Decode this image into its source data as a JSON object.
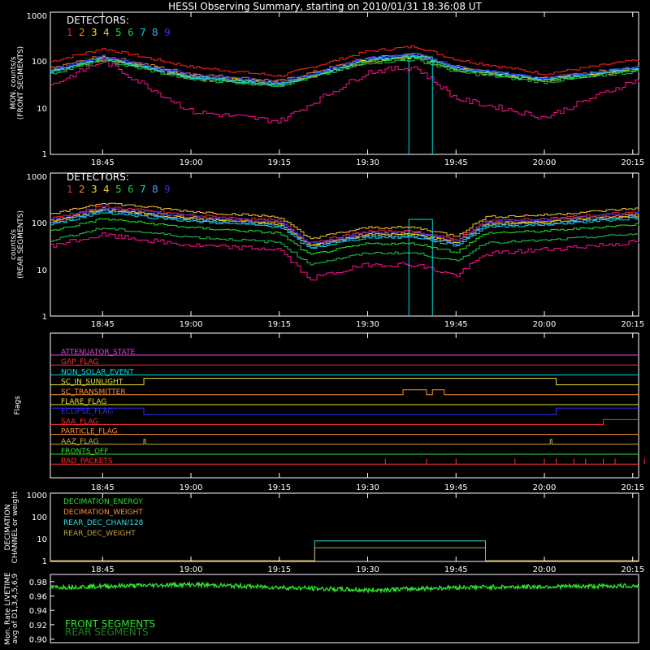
{
  "title": "HESSI Observing Summary, starting on 2010/01/31 18:36:08 UT",
  "colors": {
    "det": [
      "#ff3040",
      "#ff8030",
      "#e0e020",
      "#c8b040",
      "#30e030",
      "#40c080",
      "#00d0d0",
      "#30a0ff",
      "#4040ff"
    ],
    "magenta": "#ff1090",
    "detector_palette": [
      "#ff2020",
      "#ff7f20",
      "#ffe000",
      "#f0c040",
      "#20e020",
      "#20c050",
      "#00e0e0",
      "#40a0ff",
      "#3030ff"
    ]
  },
  "panel1": {
    "ylabel_line1": "MON. counts/s",
    "ylabel_line2": "(FRONT SEGMENTS)",
    "legend_title": "DETECTORS:",
    "legend_numbers": [
      "1",
      "2",
      "3",
      "4",
      "5",
      "6",
      "7",
      "8",
      "9"
    ],
    "yticks": [
      "1000",
      "100",
      "10",
      "1"
    ]
  },
  "panel2": {
    "ylabel_line1": "counts/s",
    "ylabel_line2": "(REAR SEGMENTS)",
    "legend_title": "DETECTORS:",
    "legend_numbers": [
      "1",
      "2",
      "3",
      "4",
      "5",
      "6",
      "7",
      "8",
      "9"
    ],
    "yticks": [
      "1000",
      "100",
      "10",
      "1"
    ]
  },
  "xticks": [
    "18:45",
    "19:00",
    "19:15",
    "19:30",
    "19:45",
    "20:00",
    "20:15"
  ],
  "flags_panel": {
    "ylabel": "Flags",
    "flags": [
      {
        "name": "ATTENUATOR_STATE",
        "color": "#e040e0"
      },
      {
        "name": "GAP_FLAG",
        "color": "#ff3030"
      },
      {
        "name": "NON_SOLAR_EVENT",
        "color": "#00e0e0"
      },
      {
        "name": "SC_IN_SUNLIGHT",
        "color": "#e0e030"
      },
      {
        "name": "SC_TRANSMITTER",
        "color": "#ff9030"
      },
      {
        "name": "FLARE_FLAG",
        "color": "#e0e020"
      },
      {
        "name": "ECLIPSE_FLAG",
        "color": "#3030ff"
      },
      {
        "name": "SAA_FLAG",
        "color": "#ff3030"
      },
      {
        "name": "PARTICLE_FLAG",
        "color": "#ff9030"
      },
      {
        "name": "AAZ_FLAG",
        "color": "#c0b040"
      },
      {
        "name": "FRONTS_OFF",
        "color": "#30e030"
      },
      {
        "name": "BAD_PACKETS",
        "color": "#ff3030"
      }
    ]
  },
  "decimation_panel": {
    "ylabel_line1": "DECIMATION",
    "ylabel_line2": "CHANNEL or weight",
    "yticks": [
      "1000",
      "100",
      "10",
      "1"
    ],
    "legend": [
      {
        "name": "DECIMATION_ENERGY",
        "color": "#30e030"
      },
      {
        "name": "DECIMATION_WEIGHT",
        "color": "#ff9030"
      },
      {
        "name": "REAR_DEC_CHAN/128",
        "color": "#30e0e0"
      },
      {
        "name": "REAR_DEC_WEIGHT",
        "color": "#c0a040"
      }
    ]
  },
  "livetime_panel": {
    "ylabel_line1": "Mon. Rate LIVETIME",
    "ylabel_line2": "avg of D1,3,4,5,6,9",
    "yticks": [
      "0.98",
      "0.96",
      "0.94",
      "0.92",
      "0.90"
    ],
    "legend": [
      {
        "name": "FRONT SEGMENTS",
        "color": "#30e030"
      },
      {
        "name": "REAR SEGMENTS",
        "color": "#208020"
      }
    ]
  },
  "chart_data": {
    "type": "line",
    "title": "HESSI Observing Summary, starting on 2010/01/31 18:36:08 UT",
    "x_axis": {
      "unit": "UT time",
      "range": [
        "18:36",
        "20:16"
      ],
      "ticks": [
        "18:45",
        "19:00",
        "19:15",
        "19:30",
        "19:45",
        "20:00",
        "20:15"
      ]
    },
    "panels": [
      {
        "name": "front segments",
        "ylabel": "MON. counts/s (FRONT SEGMENTS)",
        "yscale": "log",
        "ylim": [
          1,
          1000
        ],
        "x": [
          "18:36",
          "18:45",
          "19:00",
          "19:15",
          "19:30",
          "19:38",
          "19:45",
          "20:00",
          "20:15"
        ],
        "series": [
          {
            "name": "1",
            "values": [
              90,
              170,
              70,
              45,
              150,
              190,
              100,
              50,
              95
            ]
          },
          {
            "name": "2",
            "values": [
              65,
              120,
              50,
              35,
              110,
              130,
              70,
              40,
              70
            ]
          },
          {
            "name": "3",
            "values": [
              60,
              110,
              45,
              32,
              100,
              120,
              65,
              38,
              65
            ]
          },
          {
            "name": "4",
            "values": [
              55,
              100,
              40,
              30,
              90,
              110,
              60,
              35,
              60
            ]
          },
          {
            "name": "5",
            "values": [
              60,
              105,
              42,
              30,
              95,
              115,
              62,
              36,
              62
            ]
          },
          {
            "name": "6",
            "values": [
              50,
              95,
              38,
              28,
              85,
              100,
              55,
              33,
              55
            ]
          },
          {
            "name": "7",
            "values": [
              55,
              110,
              42,
              30,
              100,
              125,
              65,
              38,
              65
            ]
          },
          {
            "name": "8",
            "values": [
              58,
              112,
              44,
              31,
              102,
              128,
              66,
              39,
              66
            ]
          },
          {
            "name": "9",
            "values": [
              62,
              118,
              48,
              33,
              108,
              132,
              70,
              40,
              70
            ]
          },
          {
            "name": "magenta",
            "values": [
              28,
              95,
              8,
              5,
              55,
              70,
              15,
              6,
              35
            ]
          }
        ]
      },
      {
        "name": "rear segments",
        "ylabel": "counts/s (REAR SEGMENTS)",
        "yscale": "log",
        "ylim": [
          1,
          1000
        ],
        "x": [
          "18:36",
          "18:45",
          "19:00",
          "19:15",
          "19:20",
          "19:30",
          "19:38",
          "19:45",
          "19:50",
          "20:00",
          "20:15"
        ],
        "series": [
          {
            "name": "1",
            "values": [
              110,
              200,
              130,
              100,
              35,
              60,
              60,
              40,
              100,
              110,
              150
            ]
          },
          {
            "name": "magenta",
            "values": [
              30,
              50,
              30,
              25,
              6,
              12,
              12,
              7,
              20,
              25,
              35
            ]
          }
        ]
      },
      {
        "name": "flags",
        "type": "step-flags",
        "flags": [
          "ATTENUATOR_STATE",
          "GAP_FLAG",
          "NON_SOLAR_EVENT",
          "SC_IN_SUNLIGHT",
          "SC_TRANSMITTER",
          "FLARE_FLAG",
          "ECLIPSE_FLAG",
          "SAA_FLAG",
          "PARTICLE_FLAG",
          "AAZ_FLAG",
          "FRONTS_OFF",
          "BAD_PACKETS"
        ]
      },
      {
        "name": "decimation",
        "yscale": "log",
        "ylim": [
          1,
          1000
        ],
        "series": [
          {
            "name": "REAR_DEC_CHAN/128",
            "x": [
              "19:21",
              "19:50"
            ],
            "values": [
              8,
              8
            ]
          },
          {
            "name": "REAR_DEC_WEIGHT",
            "x": [
              "19:21",
              "19:50"
            ],
            "values": [
              4,
              4
            ]
          }
        ]
      },
      {
        "name": "livetime",
        "ylim": [
          0.9,
          0.99
        ],
        "series": [
          {
            "name": "FRONT SEGMENTS",
            "x": [
              "18:36",
              "19:00",
              "19:30",
              "19:45",
              "20:15"
            ],
            "values": [
              0.972,
              0.976,
              0.968,
              0.972,
              0.974
            ]
          }
        ]
      }
    ]
  }
}
